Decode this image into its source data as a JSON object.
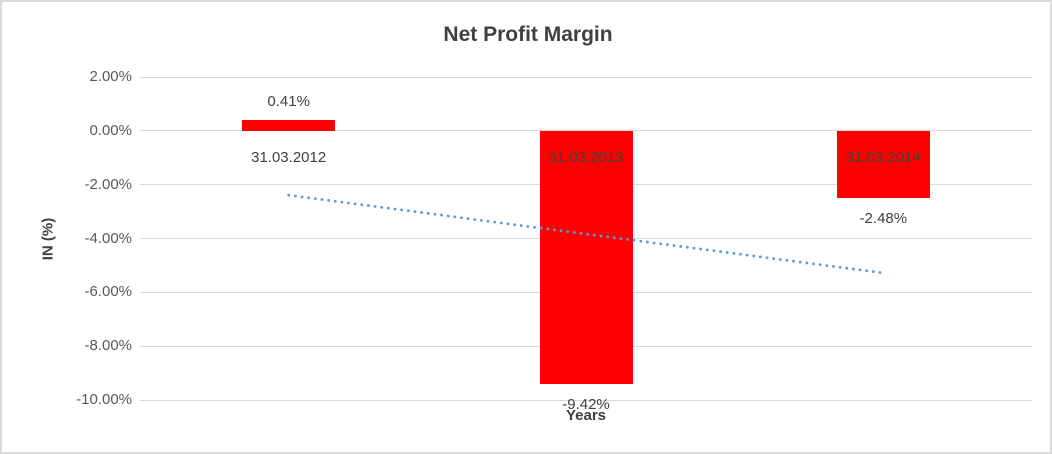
{
  "chart_data": {
    "type": "bar",
    "title": "Net Profit Margin",
    "xlabel": "Years",
    "ylabel": "IN (%)",
    "categories": [
      "31.03.2012",
      "31.03.2013",
      "31.03.2014"
    ],
    "values": [
      0.41,
      -9.42,
      -2.48
    ],
    "data_labels": [
      "0.41%",
      "-9.42%",
      "-2.48%"
    ],
    "ylim": [
      -10,
      2
    ],
    "ytick_step": 2,
    "ytick_labels": [
      "2.00%",
      "0.00%",
      "-2.00%",
      "-4.00%",
      "-6.00%",
      "-8.00%",
      "-10.00%"
    ],
    "grid": true,
    "legend": false,
    "bar_color": "#ff0000",
    "title_color": "#404040",
    "tick_color": "#595959",
    "gridline_color": "#d9d9d9",
    "trendline": {
      "type": "linear",
      "style": "dotted",
      "color": "#5b9bd5",
      "start_value": -2.39,
      "end_value": -5.28
    }
  }
}
